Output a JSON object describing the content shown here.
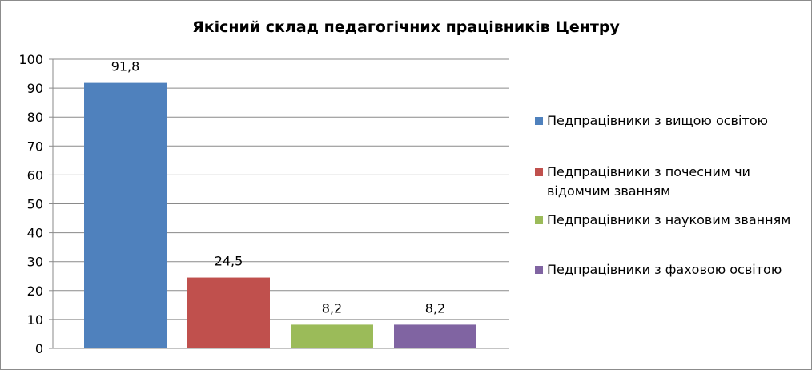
{
  "chart_data": {
    "type": "bar",
    "title": "Якісний склад педагогічних працівників  Центру",
    "categories": [
      "Педпрацівники з вищою освітою",
      "Педпрацівники з почесним чи відомчим званням",
      "Педпрацівники з науковим званням",
      "Педпрацівники з фаховою освітою"
    ],
    "series": [
      {
        "name": "Педпрацівники з вищою освітою",
        "value": 91.8,
        "label": "91,8",
        "color": "#4f81bd"
      },
      {
        "name": "Педпрацівники з почесним чи відомчим званням",
        "value": 24.5,
        "label": "24,5",
        "color": "#c0504d"
      },
      {
        "name": "Педпрацівники з науковим званням",
        "value": 8.2,
        "label": "8,2",
        "color": "#9bbb59"
      },
      {
        "name": "Педпрацівники з фаховою освітою",
        "value": 8.2,
        "label": "8,2",
        "color": "#8064a2"
      }
    ],
    "ylim": [
      0,
      100
    ],
    "yticks": [
      "0",
      "10",
      "20",
      "30",
      "40",
      "50",
      "60",
      "70",
      "80",
      "90",
      "100"
    ],
    "grid": true,
    "legend_position": "right"
  }
}
